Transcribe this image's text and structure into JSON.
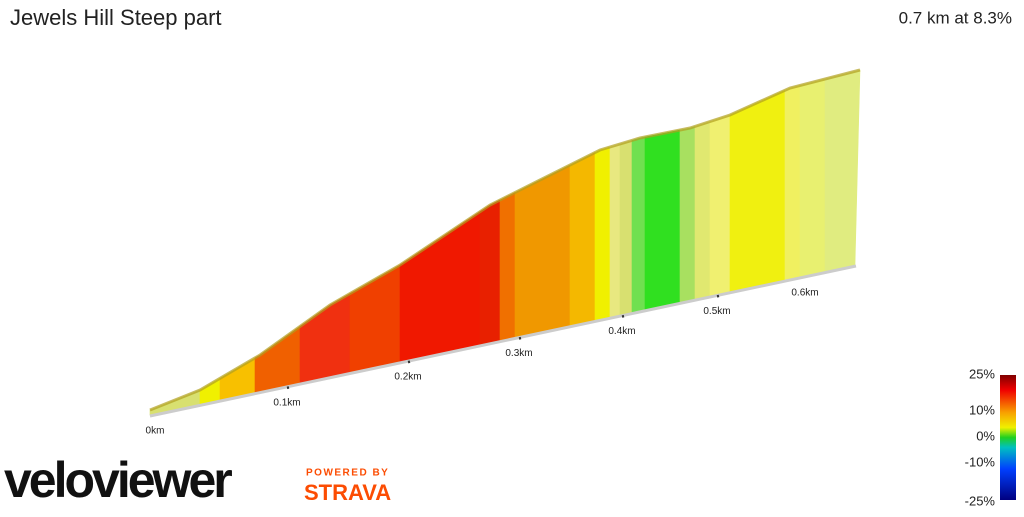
{
  "header": {
    "title": "Jewels Hill Steep part",
    "summary": "0.7 km at 8.3%"
  },
  "distance_axis": {
    "labels": [
      "0km",
      "0.1km",
      "0.2km",
      "0.3km",
      "0.4km",
      "0.5km",
      "0.6km"
    ]
  },
  "gradient_scale": {
    "labels": [
      "25%",
      "10%",
      "0%",
      "-10%",
      "-25%"
    ]
  },
  "branding": {
    "logo": "veloviewer",
    "powered_by": "POWERED BY",
    "partner": "STRAVA"
  }
}
